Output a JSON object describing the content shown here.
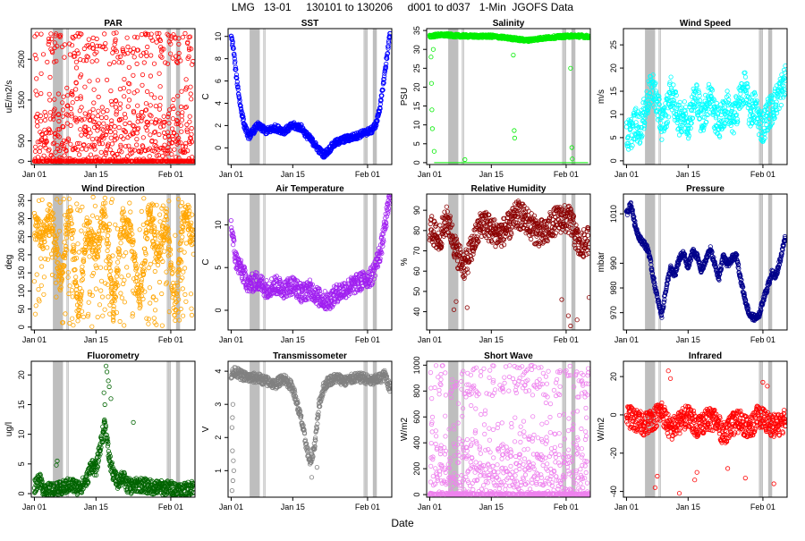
{
  "main_title": "LMG   13-01     130101 to 130206     d001 to d037   1-Min  JGOFS Data",
  "x_label": "Date",
  "shared_x": {
    "range_days": [
      -0.7,
      36.5
    ],
    "ticks": [
      {
        "day": 0,
        "label": "Jan 01"
      },
      {
        "day": 14,
        "label": "Jan 15"
      },
      {
        "day": 31,
        "label": "Feb 01"
      }
    ],
    "gray_bands_days": [
      [
        4.3,
        6.4
      ],
      [
        30.2,
        30.45
      ],
      [
        30.65,
        30.9
      ],
      [
        32.3,
        33.0
      ]
    ],
    "gray_bands_day_shift_panels": [
      "SST",
      "Salinity",
      "Air Temperature",
      "Relative Humidity",
      "Transmissometer",
      "Short Wave"
    ],
    "gray_bands_extra_days": [
      [
        7.4,
        7.7
      ]
    ]
  },
  "chart_data": [
    {
      "type": "scatter",
      "title": "PAR",
      "ylabel": "uE/m2/s",
      "color": "#ff0000",
      "ylim": [
        -80,
        3250
      ],
      "yticks": [
        0,
        500,
        1500,
        2500
      ],
      "style": "diurnal",
      "x": [
        0,
        3,
        6,
        9,
        12,
        15,
        18,
        21,
        24,
        27,
        30,
        33,
        36
      ],
      "y": [
        2700,
        2100,
        1800,
        2300,
        2600,
        2000,
        2100,
        2600,
        2200,
        2450,
        2000,
        2400,
        2100
      ],
      "max": 3150
    },
    {
      "type": "scatter",
      "title": "SST",
      "ylabel": "C",
      "color": "#0000ff",
      "ylim": [
        -1.5,
        10.7
      ],
      "yticks": [
        0,
        2,
        4,
        6,
        8,
        10
      ],
      "style": "line",
      "x": [
        0,
        0.5,
        1,
        2,
        3,
        4,
        5,
        6,
        8,
        10,
        12,
        14,
        16,
        17,
        18,
        19,
        20,
        21,
        22,
        23,
        24,
        26,
        28,
        30,
        32,
        33,
        34,
        35,
        36
      ],
      "y": [
        10,
        9,
        7,
        4,
        2,
        1,
        1.5,
        2,
        1.5,
        1.8,
        1.5,
        2,
        1.8,
        1.2,
        0.8,
        0.3,
        -0.2,
        -0.6,
        -0.3,
        0.2,
        0.5,
        0.8,
        1.0,
        1.3,
        1.6,
        2.2,
        4,
        7,
        10
      ],
      "spread": 0.6
    },
    {
      "type": "scatter",
      "title": "Salinity",
      "ylabel": "PSU",
      "color": "#00ee00",
      "ylim": [
        -0.5,
        35.5
      ],
      "yticks": [
        0,
        5,
        10,
        15,
        20,
        25,
        30,
        35
      ],
      "style": "line",
      "x": [
        0,
        2,
        4,
        6,
        10,
        14,
        18,
        22,
        26,
        30,
        33,
        36
      ],
      "y": [
        33.5,
        33.8,
        33.8,
        33.6,
        33.5,
        33.5,
        33.0,
        32.4,
        33.0,
        33.4,
        33.6,
        33.4
      ],
      "spread": 0.8,
      "outliers": [
        [
          0.3,
          28
        ],
        [
          0.4,
          21
        ],
        [
          0.5,
          14
        ],
        [
          0.6,
          9
        ],
        [
          1.0,
          3
        ],
        [
          0.8,
          30
        ],
        [
          8.0,
          0.8
        ],
        [
          19.0,
          28.5
        ],
        [
          19.2,
          8.5
        ],
        [
          19.3,
          6.5
        ],
        [
          32.0,
          25
        ],
        [
          32.3,
          4
        ],
        [
          32.4,
          1.0
        ]
      ],
      "zero_line": true
    },
    {
      "type": "scatter",
      "title": "Wind Speed",
      "ylabel": "m/s",
      "color": "#00ffff",
      "ylim": [
        -0.8,
        28.5
      ],
      "yticks": [
        0,
        5,
        10,
        15,
        20,
        25
      ],
      "style": "line",
      "x": [
        0,
        1,
        2,
        3,
        4,
        5,
        6,
        7,
        8,
        9,
        10,
        11,
        12,
        13,
        14,
        15,
        16,
        17,
        18,
        19,
        20,
        21,
        22,
        23,
        24,
        25,
        26,
        27,
        28,
        29,
        30,
        31,
        32,
        33,
        34,
        35,
        36
      ],
      "y": [
        5,
        6,
        8,
        7,
        10,
        14,
        16,
        12,
        8,
        10,
        15,
        12,
        9,
        10,
        8,
        12,
        14,
        9,
        11,
        15,
        10,
        8,
        10,
        12,
        8,
        11,
        14,
        16,
        10,
        12,
        9,
        7,
        10,
        11,
        13,
        15,
        17
      ],
      "spread": 7.0
    },
    {
      "type": "scatter",
      "title": "Wind Direction",
      "ylabel": "deg",
      "color": "#ffa500",
      "ylim": [
        -8,
        368
      ],
      "yticks": [
        0,
        50,
        100,
        150,
        200,
        250,
        300,
        350
      ],
      "style": "wrap",
      "x": [
        0,
        2,
        4,
        6,
        8,
        10,
        12,
        14,
        16,
        18,
        20,
        22,
        24,
        26,
        28,
        30,
        32,
        34,
        36
      ],
      "y": [
        280,
        250,
        300,
        120,
        330,
        30,
        280,
        200,
        330,
        40,
        300,
        250,
        60,
        320,
        200,
        300,
        40,
        330,
        240
      ],
      "spread": 70
    },
    {
      "type": "scatter",
      "title": "Air Temperature",
      "ylabel": "C",
      "color": "#a020f0",
      "ylim": [
        -2.3,
        13.6
      ],
      "yticks": [
        0,
        5,
        10
      ],
      "style": "line",
      "x": [
        0,
        0.5,
        1,
        2,
        3,
        4,
        6,
        8,
        10,
        12,
        14,
        16,
        18,
        20,
        22,
        24,
        26,
        28,
        30,
        32,
        34,
        35,
        36
      ],
      "y": [
        10,
        8,
        6,
        5,
        4,
        3,
        3.5,
        2.5,
        3,
        2.5,
        3,
        2,
        2.5,
        1.5,
        1,
        2,
        2.5,
        3,
        3.5,
        4,
        7,
        10,
        13
      ],
      "spread": 2.2
    },
    {
      "type": "scatter",
      "title": "Relative Humidity",
      "ylabel": "%",
      "color": "#8b0000",
      "ylim": [
        31,
        98
      ],
      "yticks": [
        40,
        50,
        60,
        70,
        80,
        90
      ],
      "style": "line",
      "x": [
        0,
        2,
        4,
        6,
        8,
        10,
        12,
        14,
        16,
        18,
        20,
        22,
        24,
        26,
        28,
        30,
        32,
        34,
        36
      ],
      "y": [
        82,
        75,
        86,
        70,
        62,
        74,
        85,
        80,
        78,
        82,
        88,
        85,
        80,
        78,
        84,
        86,
        85,
        72,
        75
      ],
      "spread": 14,
      "outliers": [
        [
          5.5,
          41
        ],
        [
          6.0,
          45
        ],
        [
          8.5,
          42
        ],
        [
          30.0,
          46
        ],
        [
          31.5,
          38
        ],
        [
          32.0,
          33
        ],
        [
          33.5,
          36
        ],
        [
          36.2,
          47
        ]
      ]
    },
    {
      "type": "scatter",
      "title": "Pressure",
      "ylabel": "mbar",
      "color": "#00008b",
      "ylim": [
        963,
        1018
      ],
      "yticks": [
        970,
        980,
        990,
        1010
      ],
      "style": "line",
      "x": [
        0,
        1,
        2,
        3,
        4,
        5,
        6,
        7,
        8,
        9,
        10,
        11,
        12,
        13,
        14,
        15,
        16,
        17,
        18,
        19,
        20,
        21,
        22,
        23,
        24,
        25,
        26,
        27,
        28,
        29,
        30,
        31,
        32,
        33,
        34,
        35,
        36
      ],
      "y": [
        1010,
        1014,
        1005,
        1000,
        998,
        995,
        985,
        976,
        969,
        980,
        988,
        985,
        992,
        994,
        988,
        995,
        993,
        987,
        991,
        996,
        990,
        984,
        993,
        989,
        992,
        993,
        983,
        975,
        969,
        968,
        968,
        975,
        980,
        986,
        985,
        992,
        1000
      ],
      "spread": 2.5
    },
    {
      "type": "scatter",
      "title": "Fluorometry",
      "ylabel": "ug/l",
      "color": "#006400",
      "ylim": [
        -0.6,
        22.3
      ],
      "yticks": [
        0,
        5,
        10,
        15,
        20
      ],
      "style": "line",
      "x": [
        0,
        1,
        2,
        3,
        4,
        6,
        8,
        10,
        11,
        12,
        13,
        14,
        15,
        16,
        17,
        18,
        19,
        20,
        21,
        22,
        24,
        26,
        28,
        30,
        32,
        34,
        36
      ],
      "y": [
        1.2,
        2.5,
        1.0,
        0.6,
        0.5,
        0.8,
        1.5,
        1.0,
        1.5,
        2.5,
        5,
        4,
        8,
        12,
        6,
        3,
        2,
        3,
        1.5,
        1.2,
        1.5,
        1.2,
        1.0,
        1.0,
        0.8,
        0.5,
        1.2
      ],
      "spread": 2.5,
      "outliers": [
        [
          16.3,
          21.5
        ],
        [
          16.5,
          20.5
        ],
        [
          16.8,
          19
        ],
        [
          17.0,
          18
        ],
        [
          15.8,
          17
        ],
        [
          16.0,
          15
        ],
        [
          17.4,
          16
        ],
        [
          22.5,
          12
        ],
        [
          5.2,
          5.5
        ],
        [
          5.0,
          4.8
        ]
      ]
    },
    {
      "type": "scatter",
      "title": "Transmissometer",
      "ylabel": "V",
      "color": "#808080",
      "ylim": [
        0.2,
        4.3
      ],
      "yticks": [
        1,
        2,
        3,
        4
      ],
      "style": "line",
      "x": [
        0,
        1,
        2,
        4,
        6,
        8,
        10,
        12,
        14,
        15,
        16,
        17,
        18,
        19,
        20,
        21,
        22,
        24,
        26,
        28,
        30,
        32,
        34,
        35,
        36
      ],
      "y": [
        3.9,
        4.0,
        3.9,
        3.8,
        3.8,
        3.7,
        3.6,
        3.8,
        3.5,
        3.0,
        2.5,
        1.8,
        1.2,
        1.8,
        3.0,
        3.5,
        3.7,
        3.8,
        3.7,
        3.8,
        3.8,
        3.7,
        3.8,
        3.9,
        3.5
      ],
      "spread": 0.3,
      "outliers": [
        [
          0.2,
          0.4
        ],
        [
          0.4,
          0.7
        ],
        [
          0.6,
          1.0
        ],
        [
          0.5,
          1.3
        ],
        [
          0.3,
          1.6
        ],
        [
          0.2,
          2.3
        ],
        [
          0.3,
          2.6
        ],
        [
          0.4,
          3.0
        ],
        [
          18.3,
          0.8
        ],
        [
          19.5,
          1.1
        ]
      ]
    },
    {
      "type": "scatter",
      "title": "Short Wave",
      "ylabel": "W/m2",
      "color": "#ee82ee",
      "ylim": [
        -20,
        1030
      ],
      "yticks": [
        0,
        200,
        400,
        600,
        800,
        1000
      ],
      "style": "diurnal",
      "x": [
        0,
        3,
        6,
        9,
        12,
        15,
        18,
        21,
        24,
        27,
        30,
        33,
        36
      ],
      "y": [
        900,
        700,
        600,
        750,
        820,
        640,
        700,
        820,
        700,
        780,
        650,
        760,
        700
      ],
      "max": 1000
    },
    {
      "type": "scatter",
      "title": "Infrared",
      "ylabel": "W/m2",
      "color": "#ff0000",
      "ylim": [
        -43,
        28
      ],
      "yticks": [
        -40,
        -20,
        0,
        20
      ],
      "style": "line",
      "x": [
        0,
        2,
        4,
        6,
        8,
        10,
        12,
        14,
        16,
        18,
        20,
        22,
        24,
        26,
        28,
        30,
        32,
        34,
        36
      ],
      "y": [
        0,
        -3,
        -5,
        -2,
        2,
        -8,
        -4,
        0,
        -6,
        -3,
        -2,
        -10,
        -5,
        -3,
        -8,
        0,
        -4,
        -6,
        -3
      ],
      "spread": 12,
      "outliers": [
        [
          6.5,
          -38
        ],
        [
          7.0,
          -32
        ],
        [
          9.5,
          23
        ],
        [
          10.0,
          19
        ],
        [
          15.5,
          -34
        ],
        [
          16.0,
          -30
        ],
        [
          23.0,
          -28
        ],
        [
          27.0,
          -33
        ],
        [
          31.0,
          17
        ],
        [
          32.0,
          15
        ],
        [
          33.5,
          -36
        ],
        [
          12.0,
          -41
        ]
      ]
    }
  ]
}
